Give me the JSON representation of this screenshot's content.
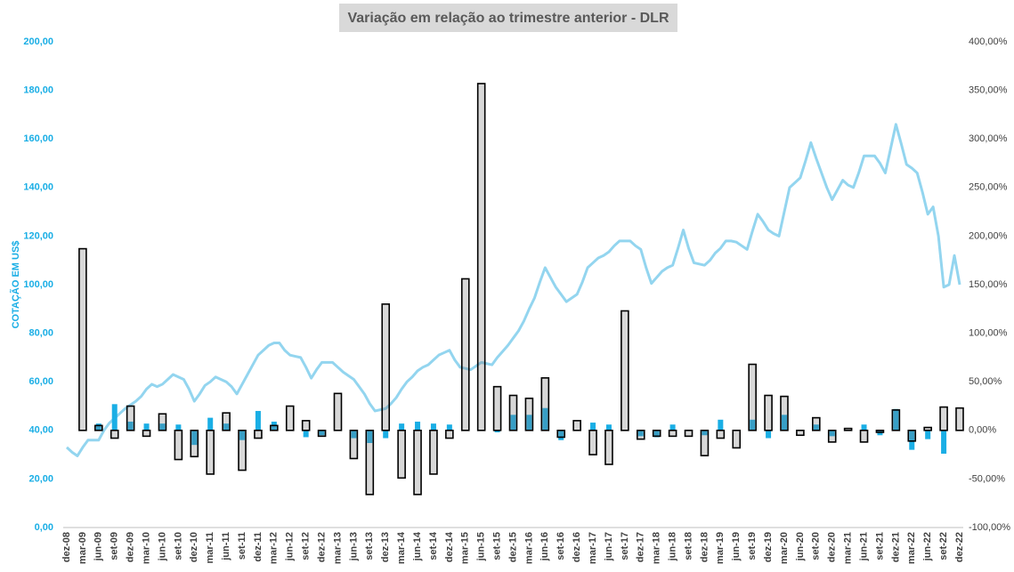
{
  "chart_data": {
    "type": "combo",
    "title": "Variação em relação ao trimestre anterior - DLR",
    "y_label": "COTAÇÃO EM US$",
    "grid": false,
    "categories": [
      "dez-08",
      null,
      null,
      "mar-09",
      null,
      null,
      "jun-09",
      null,
      null,
      "set-09",
      null,
      null,
      "dez-09",
      null,
      null,
      "mar-10",
      null,
      null,
      "jun-10",
      null,
      null,
      "set-10",
      null,
      null,
      "dez-10",
      null,
      null,
      "mar-11",
      null,
      null,
      "jun-11",
      null,
      null,
      "set-11",
      null,
      null,
      "dez-11",
      null,
      null,
      "mar-12",
      null,
      null,
      "jun-12",
      null,
      null,
      "set-12",
      null,
      null,
      "dez-12",
      null,
      null,
      "mar-13",
      null,
      null,
      "jun-13",
      null,
      null,
      "set-13",
      null,
      null,
      "dez-13",
      null,
      null,
      "mar-14",
      null,
      null,
      "jun-14",
      null,
      null,
      "set-14",
      null,
      null,
      "dez-14",
      null,
      null,
      "mar-15",
      null,
      null,
      "jun-15",
      null,
      null,
      "set-15",
      null,
      null,
      "dez-15",
      null,
      null,
      "mar-16",
      null,
      null,
      "jun-16",
      null,
      null,
      "set-16",
      null,
      null,
      "dez-16",
      null,
      null,
      "mar-17",
      null,
      null,
      "jun-17",
      null,
      null,
      "set-17",
      null,
      null,
      "dez-17",
      null,
      null,
      "mar-18",
      null,
      null,
      "jun-18",
      null,
      null,
      "set-18",
      null,
      null,
      "dez-18",
      null,
      null,
      "mar-19",
      null,
      null,
      "jun-19",
      null,
      null,
      "set-19",
      null,
      null,
      "dez-19",
      null,
      null,
      "mar-20",
      null,
      null,
      "jun-20",
      null,
      null,
      "set-20",
      null,
      null,
      "dez-20",
      null,
      null,
      "mar-21",
      null,
      null,
      "jun-21",
      null,
      null,
      "set-21",
      null,
      null,
      "dez-21",
      null,
      null,
      "mar-22",
      null,
      null,
      "jun-22",
      null,
      null,
      "set-22",
      null,
      null,
      "dez-22"
    ],
    "ylim": [
      0,
      200
    ],
    "yticks": [
      {
        "value": 0,
        "label": "0,00"
      },
      {
        "value": 20,
        "label": "20,00"
      },
      {
        "value": 40,
        "label": "40,00"
      },
      {
        "value": 60,
        "label": "60,00"
      },
      {
        "value": 80,
        "label": "80,00"
      },
      {
        "value": 100,
        "label": "100,00"
      },
      {
        "value": 120,
        "label": "120,00"
      },
      {
        "value": 140,
        "label": "140,00"
      },
      {
        "value": 160,
        "label": "160,00"
      },
      {
        "value": 180,
        "label": "180,00"
      },
      {
        "value": 200,
        "label": "200,00"
      }
    ],
    "y2lim": [
      -100,
      400
    ],
    "y2ticks": [
      {
        "value": -100,
        "label": "-100,00%"
      },
      {
        "value": -50,
        "label": "-50,00%"
      },
      {
        "value": 0,
        "label": "0,00%"
      },
      {
        "value": 50,
        "label": "50,00%"
      },
      {
        "value": 100,
        "label": "100,00%"
      },
      {
        "value": 150,
        "label": "150,00%"
      },
      {
        "value": 200,
        "label": "200,00%"
      },
      {
        "value": 250,
        "label": "250,00%"
      },
      {
        "value": 300,
        "label": "300,00%"
      },
      {
        "value": 350,
        "label": "350,00%"
      },
      {
        "value": 400,
        "label": "400,00%"
      }
    ],
    "series": [
      {
        "type": "line",
        "color": "#93d5ef",
        "values": [
          33,
          31,
          29.5,
          33,
          36,
          36,
          36,
          40,
          43,
          45,
          47,
          49,
          50.5,
          52,
          54,
          57,
          59,
          58,
          59,
          61,
          63,
          62,
          61,
          57,
          52,
          55,
          58.5,
          60,
          62,
          61,
          60,
          58,
          55,
          59,
          63,
          67,
          71,
          73,
          75,
          76,
          76,
          73,
          71,
          70.5,
          70,
          66,
          61.5,
          65,
          68,
          68,
          68,
          66,
          64,
          62.5,
          61,
          58,
          55,
          51,
          48,
          48.5,
          49,
          51,
          53.5,
          57,
          60,
          62,
          64.5,
          66,
          67,
          69,
          71,
          72,
          73,
          69,
          66,
          65.5,
          65,
          66.5,
          68,
          67.5,
          67,
          70,
          72.5,
          75,
          78,
          81,
          85,
          90,
          94.5,
          101,
          107,
          103,
          99,
          96,
          93,
          94.5,
          96,
          101,
          107,
          109,
          111,
          112,
          113.5,
          116,
          118,
          118,
          118,
          116,
          114.5,
          107,
          100.5,
          103,
          105.5,
          107,
          108,
          115,
          122.5,
          115,
          109,
          108.5,
          108,
          110,
          113,
          115,
          118,
          118,
          117.5,
          116,
          114.5,
          122,
          129,
          126,
          122.5,
          121,
          120,
          130,
          140,
          142,
          144,
          151,
          158.5,
          152,
          146,
          140,
          135,
          139,
          143,
          141,
          140,
          146,
          153,
          153,
          153,
          150,
          146,
          156,
          166,
          158,
          149.5,
          148,
          146,
          138,
          129,
          132,
          120,
          99,
          100,
          112,
          100
        ]
      },
      {
        "type": "bar",
        "axis": "y2",
        "color": "#1aaee5",
        "values": [
          null,
          null,
          null,
          null,
          null,
          null,
          7,
          null,
          null,
          27,
          null,
          null,
          9,
          null,
          null,
          7,
          null,
          null,
          7,
          null,
          null,
          6,
          null,
          null,
          -15,
          null,
          null,
          13,
          null,
          null,
          7,
          null,
          null,
          -10,
          null,
          null,
          20,
          null,
          null,
          9,
          null,
          null,
          null,
          null,
          null,
          -7,
          null,
          null,
          -5,
          null,
          null,
          null,
          null,
          null,
          -8,
          null,
          null,
          -13,
          null,
          null,
          -8,
          null,
          null,
          7,
          null,
          null,
          9,
          null,
          null,
          7,
          null,
          null,
          6,
          null,
          null,
          null,
          null,
          null,
          null,
          null,
          null,
          -2,
          null,
          null,
          16,
          null,
          null,
          16,
          null,
          null,
          23,
          null,
          null,
          -10,
          null,
          null,
          null,
          null,
          null,
          8,
          null,
          null,
          6,
          null,
          null,
          null,
          null,
          null,
          -6,
          null,
          null,
          -7,
          null,
          null,
          6,
          null,
          null,
          null,
          null,
          null,
          -5,
          null,
          null,
          11,
          null,
          null,
          null,
          null,
          null,
          11,
          null,
          null,
          -8,
          null,
          null,
          16,
          null,
          null,
          null,
          null,
          null,
          6,
          null,
          null,
          -6,
          null,
          null,
          null,
          null,
          null,
          6,
          null,
          null,
          -5,
          null,
          null,
          22,
          null,
          null,
          -20,
          null,
          null,
          -9,
          null,
          null,
          -24,
          null,
          null,
          null
        ]
      },
      {
        "type": "bar",
        "axis": "y2",
        "color": "#000000",
        "values": [
          null,
          null,
          null,
          187,
          null,
          null,
          5,
          null,
          null,
          -8,
          null,
          null,
          25,
          null,
          null,
          -6,
          null,
          null,
          17,
          null,
          null,
          -30,
          null,
          null,
          -27,
          null,
          null,
          -45,
          null,
          null,
          18,
          null,
          null,
          -41,
          null,
          null,
          -8,
          null,
          null,
          5,
          null,
          null,
          25,
          null,
          null,
          10,
          null,
          null,
          -6,
          null,
          null,
          38,
          null,
          null,
          -29,
          null,
          null,
          -66,
          null,
          null,
          130,
          null,
          null,
          -49,
          null,
          null,
          -66,
          null,
          null,
          -45,
          null,
          null,
          -8,
          null,
          null,
          156,
          null,
          null,
          357,
          null,
          null,
          45,
          null,
          null,
          36,
          null,
          null,
          33,
          null,
          null,
          54,
          null,
          null,
          -7,
          null,
          null,
          10,
          null,
          null,
          -25,
          null,
          null,
          -35,
          null,
          null,
          123,
          null,
          null,
          -9,
          null,
          null,
          -6,
          null,
          null,
          -6,
          null,
          null,
          -6,
          null,
          null,
          -26,
          null,
          null,
          -8,
          null,
          null,
          -18,
          null,
          null,
          68,
          null,
          null,
          36,
          null,
          null,
          35,
          null,
          null,
          -5,
          null,
          null,
          13,
          null,
          null,
          -12,
          null,
          null,
          2,
          null,
          null,
          -12,
          null,
          null,
          -2,
          null,
          null,
          21,
          null,
          null,
          -11,
          null,
          null,
          3,
          null,
          null,
          24,
          null,
          null,
          23
        ]
      }
    ]
  }
}
